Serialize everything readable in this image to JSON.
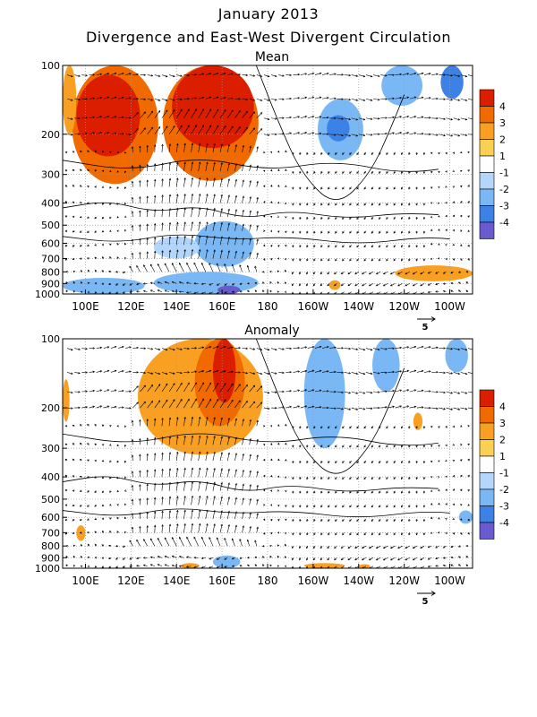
{
  "figure": {
    "title": "January 2013",
    "subtitle": "Divergence and East-West Divergent Circulation"
  },
  "chart_data": [
    {
      "type": "heatmap",
      "title": "Mean",
      "x_ticks": [
        "100E",
        "120E",
        "140E",
        "160E",
        "180",
        "160W",
        "140W",
        "120W",
        "100W"
      ],
      "x_tick_values": [
        100,
        120,
        140,
        160,
        180,
        200,
        220,
        240,
        260
      ],
      "xlim": [
        90,
        270
      ],
      "y_ticks": [
        "100",
        "200",
        "300",
        "400",
        "500",
        "600",
        "700",
        "800",
        "900",
        "1000"
      ],
      "y_tick_values": [
        100,
        200,
        300,
        400,
        500,
        600,
        700,
        800,
        900,
        1000
      ],
      "ylim": [
        1000,
        100
      ],
      "y_scale": "log",
      "grid": true,
      "colorbar": {
        "labels": [
          "4",
          "3",
          "2",
          "1",
          "-1",
          "-2",
          "-3",
          "-4"
        ],
        "levels": [
          4,
          3,
          2,
          1,
          -1,
          -2,
          -3,
          -4
        ],
        "colors": [
          "#dc1e00",
          "#f06a00",
          "#f9a022",
          "#fcd054",
          "#ffffff",
          "#b4d6fa",
          "#7ab8f5",
          "#3c82e6",
          "#6a5ad0"
        ]
      },
      "vector_reference": "5",
      "regions": [
        {
          "lon": [
            94,
            132
          ],
          "p": [
            100,
            330
          ],
          "value": 3
        },
        {
          "lon": [
            96,
            124
          ],
          "p": [
            110,
            250
          ],
          "value": 4
        },
        {
          "lon": [
            134,
            176
          ],
          "p": [
            100,
            320
          ],
          "value": 3
        },
        {
          "lon": [
            138,
            174
          ],
          "p": [
            100,
            230
          ],
          "value": 4
        },
        {
          "lon": [
            90,
            96
          ],
          "p": [
            100,
            200
          ],
          "value": 2
        },
        {
          "lon": [
            202,
            222
          ],
          "p": [
            140,
            260
          ],
          "value": -2
        },
        {
          "lon": [
            206,
            216
          ],
          "p": [
            165,
            215
          ],
          "value": -3
        },
        {
          "lon": [
            230,
            248
          ],
          "p": [
            100,
            150
          ],
          "value": -2
        },
        {
          "lon": [
            256,
            266
          ],
          "p": [
            100,
            140
          ],
          "value": -3
        },
        {
          "lon": [
            148,
            174
          ],
          "p": [
            480,
            760
          ],
          "value": -2
        },
        {
          "lon": [
            130,
            150
          ],
          "p": [
            560,
            700
          ],
          "value": -1
        },
        {
          "lon": [
            90,
            126
          ],
          "p": [
            850,
            1000
          ],
          "value": -2
        },
        {
          "lon": [
            130,
            176
          ],
          "p": [
            800,
            1000
          ],
          "value": -2
        },
        {
          "lon": [
            158,
            168
          ],
          "p": [
            920,
            1000
          ],
          "value": -4
        },
        {
          "lon": [
            236,
            270
          ],
          "p": [
            750,
            880
          ],
          "value": 2
        },
        {
          "lon": [
            207,
            212
          ],
          "p": [
            870,
            960
          ],
          "value": 2
        }
      ]
    },
    {
      "type": "heatmap",
      "title": "Anomaly",
      "x_ticks": [
        "100E",
        "120E",
        "140E",
        "160E",
        "180",
        "160W",
        "140W",
        "120W",
        "100W"
      ],
      "x_tick_values": [
        100,
        120,
        140,
        160,
        180,
        200,
        220,
        240,
        260
      ],
      "xlim": [
        90,
        270
      ],
      "y_ticks": [
        "100",
        "200",
        "300",
        "400",
        "500",
        "600",
        "700",
        "800",
        "900",
        "1000"
      ],
      "y_tick_values": [
        100,
        200,
        300,
        400,
        500,
        600,
        700,
        800,
        900,
        1000
      ],
      "ylim": [
        1000,
        100
      ],
      "y_scale": "log",
      "grid": true,
      "colorbar": {
        "labels": [
          "4",
          "3",
          "2",
          "1",
          "-1",
          "-2",
          "-3",
          "-4"
        ],
        "levels": [
          4,
          3,
          2,
          1,
          -1,
          -2,
          -3,
          -4
        ],
        "colors": [
          "#dc1e00",
          "#f06a00",
          "#f9a022",
          "#fcd054",
          "#ffffff",
          "#b4d6fa",
          "#7ab8f5",
          "#3c82e6",
          "#6a5ad0"
        ]
      },
      "vector_reference": "5",
      "regions": [
        {
          "lon": [
            123,
            178
          ],
          "p": [
            100,
            320
          ],
          "value": 2
        },
        {
          "lon": [
            148,
            170
          ],
          "p": [
            100,
            240
          ],
          "value": 3
        },
        {
          "lon": [
            156,
            166
          ],
          "p": [
            100,
            190
          ],
          "value": 4
        },
        {
          "lon": [
            90,
            93
          ],
          "p": [
            150,
            230
          ],
          "value": 2
        },
        {
          "lon": [
            196,
            214
          ],
          "p": [
            100,
            300
          ],
          "value": -2
        },
        {
          "lon": [
            226,
            238
          ],
          "p": [
            100,
            170
          ],
          "value": -2
        },
        {
          "lon": [
            258,
            268
          ],
          "p": [
            100,
            140
          ],
          "value": -2
        },
        {
          "lon": [
            96,
            100
          ],
          "p": [
            650,
            760
          ],
          "value": 2
        },
        {
          "lon": [
            264,
            270
          ],
          "p": [
            560,
            640
          ],
          "value": -2
        },
        {
          "lon": [
            156,
            168
          ],
          "p": [
            880,
            1000
          ],
          "value": -2
        },
        {
          "lon": [
            142,
            150
          ],
          "p": [
            950,
            1000
          ],
          "value": 2
        },
        {
          "lon": [
            196,
            214
          ],
          "p": [
            950,
            1000
          ],
          "value": 2
        },
        {
          "lon": [
            220,
            225
          ],
          "p": [
            960,
            1000
          ],
          "value": 2
        },
        {
          "lon": [
            244,
            248
          ],
          "p": [
            210,
            250
          ],
          "value": 2
        }
      ]
    }
  ]
}
